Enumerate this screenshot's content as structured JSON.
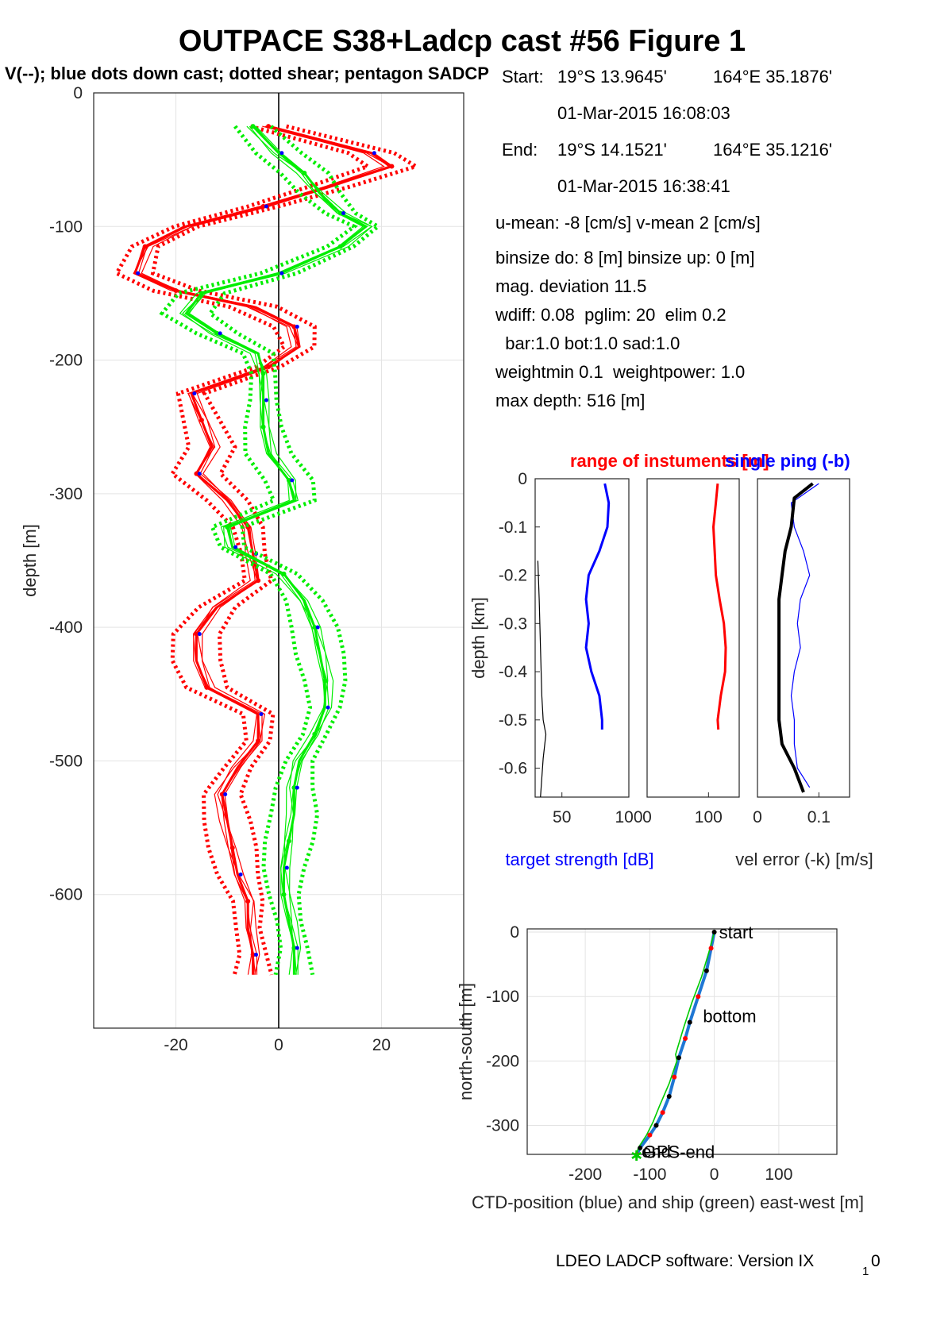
{
  "figure": {
    "title": "OUTPACE S38+Ladcp cast #56  Figure 1",
    "subtitle": "V(--); blue dots down cast; dotted shear; pentagon SADCP",
    "software": "LDEO LADCP software: Version IX",
    "software_sub": "1",
    "software_tail": "0"
  },
  "info": {
    "start_label": "Start:",
    "start_lat": "19°S 13.9645'",
    "start_lon": "164°E 35.1876'",
    "start_time": "01-Mar-2015 16:08:03",
    "end_label": "End:",
    "end_lat": "19°S 14.1521'",
    "end_lon": "164°E 35.1216'",
    "end_time": "01-Mar-2015 16:38:41",
    "means": "u-mean:  -8 [cm/s]    v-mean   2 [cm/s]",
    "binsize": "binsize do: 8 [m]  binsize up:  0 [m]",
    "magdev": "mag. deviation 11.5",
    "wdiff": "wdiff: 0.08  pglim: 20  elim 0.2",
    "weights": "  bar:1.0 bot:1.0 sad:1.0",
    "weightmin": "weightmin 0.1  weightpower: 1.0",
    "maxdepth": "max depth: 516 [m]"
  },
  "colors": {
    "u": "#ff0000",
    "v": "#00ee00",
    "dots": "#0000ff",
    "ctd": "#1f77d4",
    "ship": "#00cc00",
    "ref": "#000000"
  },
  "chart_data": [
    {
      "id": "velocity-profile",
      "type": "line",
      "ylabel": "depth [m]",
      "xlabel": "",
      "xlim": [
        -36,
        36
      ],
      "ylim": [
        -700,
        0
      ],
      "xticks": [
        -20,
        0,
        20
      ],
      "yticks": [
        0,
        -100,
        -200,
        -300,
        -400,
        -500,
        -600
      ],
      "grid": true,
      "series": [
        {
          "component": "u",
          "style": "solid",
          "depth": [
            -25,
            -45,
            -55,
            -70,
            -85,
            -100,
            -115,
            -135,
            -148,
            -160,
            -175,
            -190,
            -205,
            -225,
            -245,
            -265,
            -285,
            -305,
            -325,
            -345,
            -365,
            -385,
            -405,
            -425,
            -445,
            -465,
            -485,
            -505,
            -525,
            -545,
            -565,
            -585,
            -605,
            -625,
            -645,
            -660
          ],
          "values": [
            -2,
            18,
            22,
            10,
            -3,
            -18,
            -26,
            -28,
            -20,
            -5,
            3,
            4,
            -2,
            -17,
            -15,
            -13,
            -16,
            -10,
            -6,
            -5,
            -4,
            -12,
            -16,
            -16,
            -14,
            -4,
            -4,
            -8,
            -11,
            -10,
            -9,
            -8,
            -6,
            -6,
            -5,
            -5
          ]
        },
        {
          "component": "v",
          "style": "solid",
          "depth": [
            -25,
            -45,
            -60,
            -75,
            -90,
            -100,
            -115,
            -135,
            -150,
            -165,
            -180,
            -195,
            -210,
            -230,
            -250,
            -270,
            -290,
            -305,
            -325,
            -340,
            -360,
            -380,
            -400,
            -420,
            -440,
            -460,
            -480,
            -500,
            -520,
            -540,
            -560,
            -580,
            -600,
            -620,
            -640,
            -660
          ],
          "values": [
            -5,
            0,
            5,
            8,
            12,
            17,
            12,
            0,
            -15,
            -18,
            -12,
            -4,
            -3,
            -3,
            -3,
            -2,
            2,
            3,
            -10,
            -9,
            1,
            5,
            7,
            8,
            9,
            9,
            7,
            4,
            3,
            3,
            2,
            1,
            1,
            2,
            3,
            3
          ]
        }
      ]
    },
    {
      "id": "target-strength",
      "type": "line",
      "ylabel": "depth [km]",
      "xlabel": "target strength [dB]",
      "xlim": [
        30,
        100
      ],
      "ylim": [
        -0.66,
        0
      ],
      "xticks": [
        50,
        100
      ],
      "yticks": [
        0,
        -0.1,
        -0.2,
        -0.3,
        -0.4,
        -0.5,
        -0.6
      ],
      "series": [
        {
          "name": "target strength",
          "depth": [
            -0.01,
            -0.05,
            -0.1,
            -0.15,
            -0.2,
            -0.25,
            -0.3,
            -0.35,
            -0.4,
            -0.45,
            -0.5,
            -0.52
          ],
          "values": [
            82,
            85,
            84,
            78,
            70,
            68,
            70,
            68,
            72,
            78,
            80,
            80
          ]
        },
        {
          "name": "",
          "depth": [
            -0.17,
            -0.25,
            -0.35,
            -0.45,
            -0.5,
            -0.53,
            -0.58,
            -0.62,
            -0.66
          ],
          "values": [
            32,
            33,
            34,
            35,
            36,
            38,
            36,
            35,
            34
          ]
        }
      ]
    },
    {
      "id": "range-of-instruments",
      "type": "line",
      "title": "range of instuments [m]",
      "xlim": [
        0,
        150
      ],
      "ylim": [
        -0.66,
        0
      ],
      "xticks": [
        0,
        100
      ],
      "series": [
        {
          "depth": [
            -0.01,
            -0.05,
            -0.1,
            -0.15,
            -0.2,
            -0.25,
            -0.3,
            -0.35,
            -0.4,
            -0.45,
            -0.5,
            -0.52
          ],
          "values": [
            115,
            112,
            108,
            110,
            112,
            118,
            125,
            128,
            127,
            120,
            115,
            116
          ]
        }
      ]
    },
    {
      "id": "velocity-error",
      "type": "line",
      "title": "single ping (-b)",
      "xlabel": "vel error (-k) [m/s]",
      "xlim": [
        0,
        0.15
      ],
      "ylim": [
        -0.66,
        0
      ],
      "xticks": [
        0,
        0.1
      ],
      "series": [
        {
          "name": "single ping (-b)",
          "depth": [
            -0.01,
            -0.05,
            -0.1,
            -0.15,
            -0.2,
            -0.25,
            -0.3,
            -0.35,
            -0.4,
            -0.45,
            -0.5,
            -0.55,
            -0.6,
            -0.64
          ],
          "values": [
            0.1,
            0.055,
            0.06,
            0.075,
            0.085,
            0.07,
            0.065,
            0.07,
            0.06,
            0.055,
            0.06,
            0.06,
            0.065,
            0.085
          ]
        },
        {
          "name": "",
          "depth": [
            -0.01,
            -0.04,
            -0.1,
            -0.15,
            -0.2,
            -0.25,
            -0.3,
            -0.35,
            -0.4,
            -0.45,
            -0.5,
            -0.55,
            -0.6,
            -0.65
          ],
          "values": [
            0.09,
            0.06,
            0.055,
            0.045,
            0.04,
            0.035,
            0.035,
            0.035,
            0.035,
            0.035,
            0.035,
            0.04,
            0.06,
            0.075
          ]
        }
      ]
    },
    {
      "id": "ctd-ship-track",
      "type": "line",
      "ylabel": "north-south [m]",
      "xlabel": "CTD-position (blue) and ship (green) east-west [m]",
      "xlim": [
        -290,
        190
      ],
      "ylim": [
        -345,
        5
      ],
      "xticks": [
        -200,
        -100,
        0,
        100
      ],
      "yticks": [
        0,
        -100,
        -200,
        -300
      ],
      "annotations": [
        {
          "text": "start",
          "x": 0,
          "y": 0
        },
        {
          "text": "bottom",
          "x": -25,
          "y": -130
        },
        {
          "text": "end",
          "x": -120,
          "y": -340
        },
        {
          "text": "GPS-end",
          "x": -118,
          "y": -343
        }
      ],
      "series": [
        {
          "name": "CTD",
          "x": [
            0,
            -5,
            -12,
            -25,
            -38,
            -45,
            -55,
            -62,
            -70,
            -80,
            -90,
            -100,
            -115,
            -120
          ],
          "y": [
            0,
            -25,
            -60,
            -100,
            -140,
            -165,
            -195,
            -225,
            -255,
            -280,
            -300,
            -315,
            -335,
            -345
          ]
        },
        {
          "name": "ship",
          "x": [
            0,
            -8,
            -20,
            -35,
            -48,
            -60,
            -58,
            -70,
            -85,
            -95,
            -105,
            -118,
            -120
          ],
          "y": [
            0,
            -30,
            -70,
            -110,
            -150,
            -190,
            -200,
            -235,
            -270,
            -295,
            -315,
            -335,
            -345
          ]
        }
      ]
    }
  ]
}
